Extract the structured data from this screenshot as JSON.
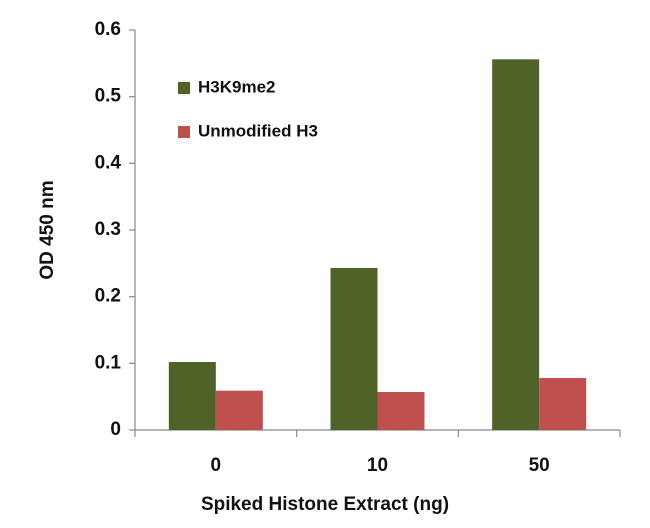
{
  "chart_data": {
    "type": "bar",
    "x_label": "Spiked Histone Extract (ng)",
    "y_label": "OD 450 nm",
    "categories": [
      "0",
      "10",
      "50"
    ],
    "series": [
      {
        "name": "H3K9me2",
        "color": "#4f6228",
        "values": [
          0.102,
          0.243,
          0.556
        ]
      },
      {
        "name": "Unmodified H3",
        "color": "#c0504d",
        "values": [
          0.059,
          0.057,
          0.078
        ]
      }
    ],
    "ylim": [
      0,
      0.6
    ],
    "yticks": [
      0,
      0.1,
      0.2,
      0.3,
      0.4,
      0.5,
      0.6
    ],
    "grid": false,
    "legend": "upper left"
  }
}
